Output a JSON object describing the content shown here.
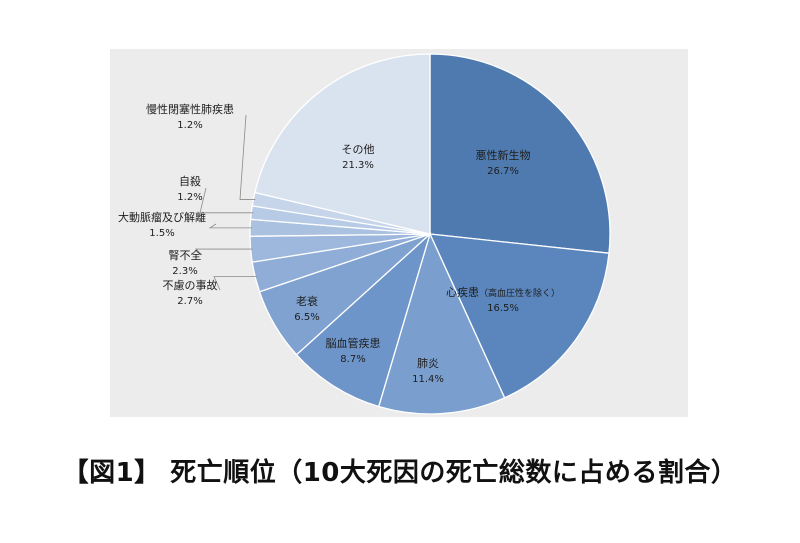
{
  "caption": "【図1】 死亡順位（10大死因の死亡総数に占める割合）",
  "chart_data": {
    "type": "pie",
    "title": "",
    "start": "12 o'clock, clockwise",
    "slices": [
      {
        "label": "悪性新生物",
        "value": 26.7,
        "pct_label": "26.7%",
        "color": "#4e7aaf"
      },
      {
        "label": "心疾患",
        "label_note": "（高血圧性を除く）",
        "value": 16.5,
        "pct_label": "16.5%",
        "color": "#5a86bd"
      },
      {
        "label": "肺炎",
        "value": 11.4,
        "pct_label": "11.4%",
        "color": "#7a9fcf"
      },
      {
        "label": "脳血管疾患",
        "value": 8.7,
        "pct_label": "8.7%",
        "color": "#6e95c9"
      },
      {
        "label": "老衰",
        "value": 6.5,
        "pct_label": "6.5%",
        "color": "#7fa2d0"
      },
      {
        "label": "不慮の事故",
        "value": 2.7,
        "pct_label": "2.7%",
        "color": "#8fadd6"
      },
      {
        "label": "腎不全",
        "value": 2.3,
        "pct_label": "2.3%",
        "color": "#9db8dc"
      },
      {
        "label": "大動脈瘤及び解離",
        "value": 1.5,
        "pct_label": "1.5%",
        "color": "#aac1e0"
      },
      {
        "label": "自殺",
        "value": 1.2,
        "pct_label": "1.2%",
        "color": "#b8cbe6"
      },
      {
        "label": "慢性閉塞性肺疾患",
        "value": 1.2,
        "pct_label": "1.2%",
        "color": "#c6d5ea"
      },
      {
        "label": "その他",
        "value": 21.3,
        "pct_label": "21.3%",
        "color": "#d9e2ef"
      }
    ]
  }
}
